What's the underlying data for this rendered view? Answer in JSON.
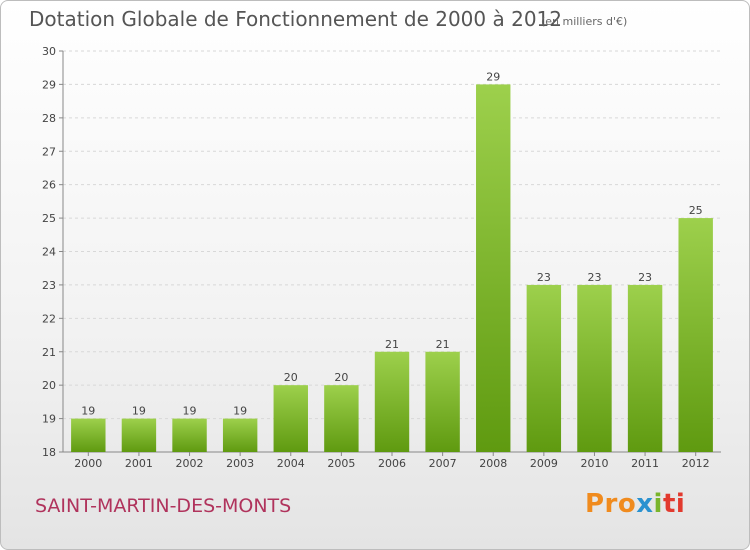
{
  "header": {
    "title": "Dotation Globale de Fonctionnement de 2000 à 2012",
    "subtitle": "(en milliers d'€)"
  },
  "footer": {
    "commune": "SAINT-MARTIN-DES-MONTS",
    "logo": {
      "p1": "Pro",
      "p2": "x",
      "p3": "i",
      "p4": "ti"
    }
  },
  "colors": {
    "bar_light": "#9dd04c",
    "bar_dark": "#5f9a10",
    "grid": "#d8d8d8",
    "commune": "#b0335c"
  },
  "chart_data": {
    "type": "bar",
    "categories": [
      "2000",
      "2001",
      "2002",
      "2003",
      "2004",
      "2005",
      "2006",
      "2007",
      "2008",
      "2009",
      "2010",
      "2011",
      "2012"
    ],
    "values": [
      19,
      19,
      19,
      19,
      20,
      20,
      21,
      21,
      29,
      23,
      23,
      23,
      25
    ],
    "ylim": [
      18,
      30
    ],
    "yticks": [
      18,
      19,
      20,
      21,
      22,
      23,
      24,
      25,
      26,
      27,
      28,
      29,
      30
    ],
    "grid": true,
    "data_labels": true
  }
}
